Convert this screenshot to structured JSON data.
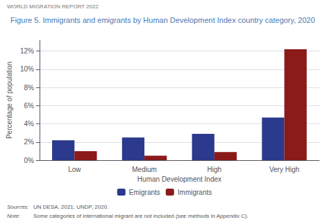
{
  "chart_data": {
    "type": "bar",
    "header": "WORLD MIGRATION REPORT 2022",
    "title": "Figure 5. Immigrants and emigrants by Human Development Index country category, 2020",
    "xlabel": "Human Development Index",
    "ylabel": "Percentage of population",
    "categories": [
      "Low",
      "Medium",
      "High",
      "Very High"
    ],
    "series": [
      {
        "name": "Emigrants",
        "color": "#2B3A8C",
        "values": [
          2.2,
          2.5,
          2.9,
          4.7
        ]
      },
      {
        "name": "Immigrants",
        "color": "#8B1A1A",
        "values": [
          1.0,
          0.5,
          0.9,
          12.2
        ]
      }
    ],
    "ylim": [
      0,
      13.2
    ],
    "yticks": [
      {
        "value": 0,
        "label": "0%"
      },
      {
        "value": 2,
        "label": "2%"
      },
      {
        "value": 4,
        "label": "4%"
      },
      {
        "value": 6,
        "label": "6%"
      },
      {
        "value": 8,
        "label": "8%"
      },
      {
        "value": 10,
        "label": "10%"
      },
      {
        "value": 12,
        "label": "12%"
      }
    ],
    "grid": true,
    "legend": "bottom",
    "annotations": [
      {
        "label": "Sources:",
        "text": "UN DESA, 2021; UNDP, 2020."
      },
      {
        "label": "Note:",
        "text": "Some categories of international migrant are not included (see methods in Appendix C)."
      }
    ]
  }
}
